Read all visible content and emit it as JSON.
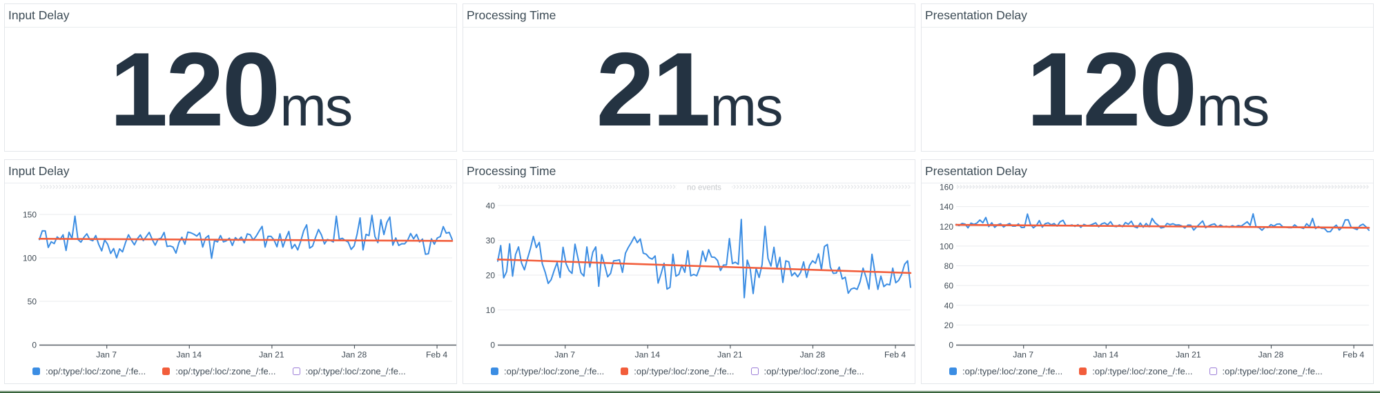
{
  "page": {
    "background": "#ffffff",
    "panel_border": "#e3e6ea",
    "title_color": "#3b4a54",
    "value_color": "#243342",
    "axis_text_color": "#4c5761",
    "bottom_bar_color": "#2f5d33",
    "no_events_text": "no events"
  },
  "summary_panels": [
    {
      "title": "Input Delay",
      "value": "120",
      "unit": "ms"
    },
    {
      "title": "Processing Time",
      "value": "21",
      "unit": "ms"
    },
    {
      "title": "Presentation Delay",
      "value": "120",
      "unit": "ms"
    }
  ],
  "chart_data": [
    {
      "type": "line",
      "title": "Input Delay",
      "xlabel": "",
      "ylabel": "",
      "x_tick_labels": [
        "Jan 7",
        "Jan 14",
        "Jan 21",
        "Jan 28",
        "Feb 4"
      ],
      "ylim": [
        0,
        150
      ],
      "yticks": [
        0,
        50,
        100,
        150
      ],
      "grid": true,
      "legend_position": "bottom",
      "events_band_annotation": "",
      "series": [
        {
          "name": ":op/:type/:loc/:zone_/:fe...",
          "color": "#3b8de3",
          "kind": "data",
          "values": [
            121.0,
            131.2,
            131.0,
            112.0,
            118.5,
            116.4,
            124.1,
            121.3,
            126.6,
            108.5,
            129.5,
            122.3,
            148.0,
            121.2,
            118.1,
            123.6,
            127.7,
            121.0,
            119.7,
            125.7,
            115.5,
            108.1,
            120.6,
            115.7,
            105.1,
            110.7,
            100.0,
            110.3,
            106.9,
            117.5,
            126.6,
            120.4,
            115.0,
            122.1,
            126.4,
            119.8,
            124.5,
            129.4,
            121.2,
            114.6,
            121.7,
            122.7,
            129.3,
            113.1,
            113.7,
            112.5,
            105.5,
            117.7,
            123.7,
            115.7,
            129.7,
            128.9,
            127.3,
            125.1,
            128.8,
            112.5,
            123.0,
            125.6,
            99.5,
            120.0,
            118.4,
            125.7,
            118.4,
            119.7,
            122.7,
            114.3,
            123.3,
            120.2,
            124.0,
            117.3,
            127.6,
            126.6,
            120.5,
            125.0,
            130.9,
            136.3,
            112.4,
            124.8,
            124.8,
            120.6,
            112.7,
            127.7,
            112.5,
            122.5,
            130.4,
            110.7,
            115.5,
            109.1,
            119.1,
            131.2,
            138.0,
            111.2,
            113.5,
            123.6,
            132.7,
            126.3,
            116.0,
            121.2,
            120.1,
            118.4,
            148.0,
            121.3,
            122.6,
            119.9,
            118.2,
            109.8,
            113.7,
            127.4,
            146.0,
            109.1,
            127.1,
            125.6,
            149.0,
            124.6,
            117.5,
            144.0,
            126.8,
            140.8,
            147.0,
            114.6,
            122.9,
            114.3,
            116.3,
            116.2,
            120.2,
            128.0,
            121.9,
            127.1,
            118.3,
            121.7,
            104.1,
            104.8,
            121.9,
            115.7,
            122.9,
            124.5,
            136.0,
            128.4,
            129.4,
            121.1
          ]
        },
        {
          "name": ":op/:type/:loc/:zone_/:fe...",
          "color": "#f25d3b",
          "kind": "trend",
          "trend_start": 122.0,
          "trend_end": 119.5
        },
        {
          "name": ":op/:type/:loc/:zone_/:fe...",
          "color": "#9d7ed8",
          "kind": "outline-only",
          "values": []
        }
      ]
    },
    {
      "type": "line",
      "title": "Processing Time",
      "xlabel": "",
      "ylabel": "",
      "x_tick_labels": [
        "Jan 7",
        "Jan 14",
        "Jan 21",
        "Jan 28",
        "Feb 4"
      ],
      "ylim": [
        0,
        40
      ],
      "yticks": [
        0,
        10,
        20,
        30,
        40
      ],
      "grid": true,
      "legend_position": "bottom",
      "events_band_annotation": "no events",
      "series": [
        {
          "name": ":op/:type/:loc/:zone_/:fe...",
          "color": "#3b8de3",
          "kind": "data",
          "values": [
            24.0,
            28.5,
            19.2,
            21.0,
            29.0,
            19.7,
            25.9,
            28.1,
            23.5,
            21.5,
            24.7,
            27.6,
            31.1,
            27.9,
            29.4,
            23.3,
            20.8,
            17.6,
            18.7,
            21.3,
            23.6,
            19.3,
            28.0,
            23.3,
            21.3,
            20.5,
            28.9,
            24.9,
            20.7,
            19.7,
            28.1,
            22.3,
            26.6,
            28.1,
            16.8,
            25.9,
            22.9,
            19.5,
            20.5,
            24.1,
            24.2,
            24.4,
            20.8,
            26.3,
            28.0,
            29.4,
            31.0,
            29.3,
            30.4,
            26.3,
            26.0,
            25.0,
            24.6,
            25.5,
            17.7,
            20.4,
            23.4,
            16.0,
            16.5,
            26.0,
            19.7,
            20.2,
            22.9,
            20.8,
            27.0,
            19.8,
            20.2,
            19.8,
            22.1,
            26.9,
            24.0,
            27.3,
            25.2,
            25.1,
            24.2,
            21.3,
            22.9,
            22.9,
            30.5,
            23.3,
            23.7,
            23.1,
            36.0,
            13.5,
            24.3,
            21.8,
            14.7,
            22.0,
            19.3,
            23.0,
            34.0,
            24.8,
            22.6,
            28.0,
            21.9,
            25.1,
            17.9,
            24.1,
            23.8,
            19.8,
            20.7,
            19.5,
            20.8,
            23.8,
            19.3,
            22.8,
            24.1,
            23.4,
            26.1,
            21.6,
            28.2,
            28.8,
            22.3,
            20.5,
            20.6,
            22.3,
            18.9,
            19.4,
            14.8,
            16.0,
            16.3,
            15.9,
            18.1,
            22.0,
            19.4,
            16.0,
            26.0,
            20.7,
            15.9,
            19.7,
            16.7,
            17.4,
            17.2,
            22.0,
            17.8,
            18.5,
            20.2,
            23.1,
            24.1,
            16.5
          ]
        },
        {
          "name": ":op/:type/:loc/:zone_/:fe...",
          "color": "#f25d3b",
          "kind": "trend",
          "trend_start": 24.5,
          "trend_end": 20.6
        },
        {
          "name": ":op/:type/:loc/:zone_/:fe...",
          "color": "#9d7ed8",
          "kind": "outline-only",
          "values": []
        }
      ]
    },
    {
      "type": "line",
      "title": "Presentation Delay",
      "xlabel": "",
      "ylabel": "",
      "x_tick_labels": [
        "Jan 7",
        "Jan 14",
        "Jan 21",
        "Jan 28",
        "Feb 4"
      ],
      "ylim": [
        0,
        160
      ],
      "yticks": [
        0,
        20,
        40,
        60,
        80,
        100,
        120,
        140,
        160
      ],
      "grid": true,
      "legend_position": "bottom",
      "events_band_annotation": "",
      "series": [
        {
          "name": ":op/:type/:loc/:zone_/:fe...",
          "color": "#3b8de3",
          "kind": "data",
          "values": [
            122.0,
            120.7,
            123.0,
            122.3,
            118.4,
            123.3,
            122.0,
            123.3,
            126.4,
            123.6,
            129.0,
            119.7,
            123.6,
            118.9,
            121.6,
            122.6,
            119.3,
            121.5,
            122.9,
            120.2,
            120.2,
            122.5,
            118.8,
            118.9,
            132.5,
            122.1,
            118.4,
            120.8,
            125.8,
            119.1,
            122.7,
            123.5,
            121.5,
            122.8,
            120.2,
            124.6,
            126.1,
            120.5,
            120.6,
            121.4,
            119.9,
            121.7,
            119.0,
            122.0,
            120.7,
            121.0,
            122.2,
            123.5,
            119.5,
            122.5,
            123.5,
            121.4,
            124.7,
            120.2,
            119.6,
            121.5,
            119.6,
            123.8,
            122.1,
            125.2,
            119.6,
            118.4,
            123.3,
            119.1,
            122.9,
            119.5,
            128.0,
            123.5,
            121.3,
            118.3,
            119.0,
            122.9,
            121.7,
            122.6,
            121.3,
            121.5,
            120.4,
            118.2,
            121.3,
            121.2,
            116.2,
            119.5,
            122.5,
            125.5,
            118.6,
            120.3,
            121.7,
            122.5,
            119.3,
            121.3,
            119.7,
            120.1,
            119.1,
            120.7,
            119.5,
            120.8,
            120.2,
            122.4,
            124.6,
            121.1,
            132.7,
            119.3,
            118.7,
            116.0,
            119.2,
            118.7,
            121.8,
            120.2,
            122.2,
            122.4,
            119.5,
            119.1,
            118.6,
            118.6,
            121.5,
            119.1,
            118.7,
            117.8,
            122.6,
            119.7,
            128.0,
            117.7,
            119.8,
            118.0,
            117.8,
            114.5,
            114.6,
            118.8,
            121.2,
            116.2,
            119.1,
            126.5,
            126.6,
            119.0,
            117.9,
            116.7,
            120.7,
            122.2,
            119.5,
            116.0
          ]
        },
        {
          "name": ":op/:type/:loc/:zone_/:fe...",
          "color": "#f25d3b",
          "kind": "trend",
          "trend_start": 121.5,
          "trend_end": 118.5
        },
        {
          "name": ":op/:type/:loc/:zone_/:fe...",
          "color": "#9d7ed8",
          "kind": "outline-only",
          "values": []
        }
      ]
    }
  ]
}
